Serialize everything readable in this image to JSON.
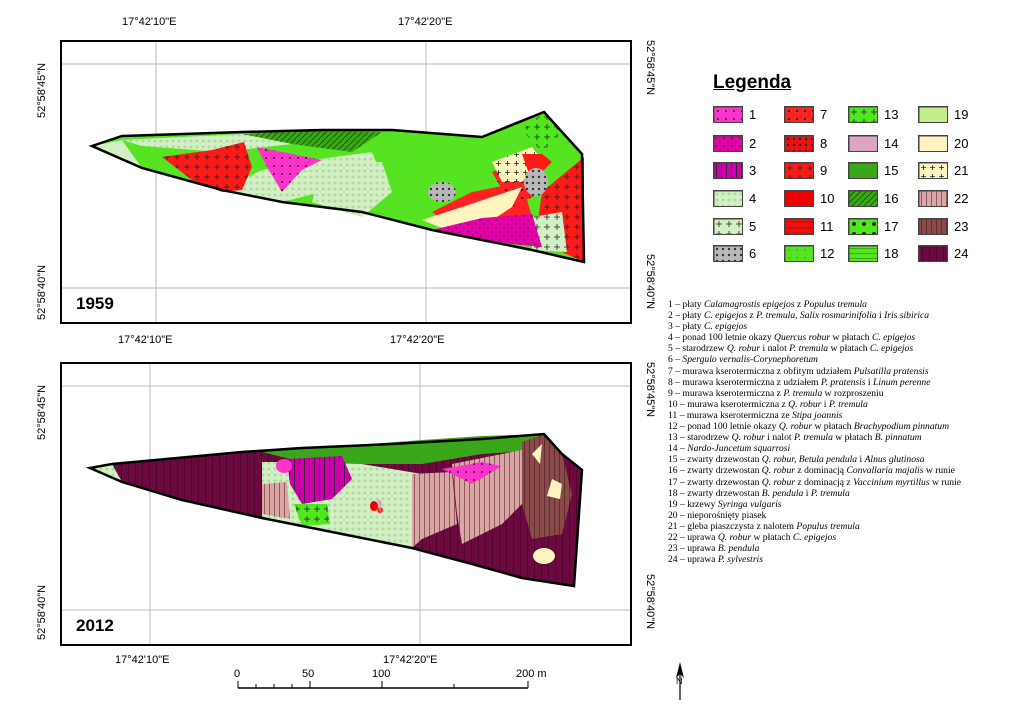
{
  "maps": [
    {
      "year": "1959"
    },
    {
      "year": "2012"
    }
  ],
  "coords": {
    "top_lon_1": "17°42'10\"E",
    "top_lon_2": "17°42'20\"E",
    "mid_lon_1": "17°42'10\"E",
    "mid_lon_2": "17°42'20\"E",
    "bot_lon_1": "17°42'10\"E",
    "bot_lon_2": "17°42'20\"E",
    "lat_45": "52°58'45\"N",
    "lat_40": "52°58'40\"N"
  },
  "legend": {
    "title": "Legenda",
    "items": [
      {
        "num": "1",
        "color": "#ff33cc"
      },
      {
        "num": "2",
        "color": "#e600a9"
      },
      {
        "num": "3",
        "color": "#cc00aa"
      },
      {
        "num": "4",
        "color": "#d3f0c4"
      },
      {
        "num": "5",
        "color": "#d3f0c4"
      },
      {
        "num": "6",
        "color": "#b8b8b8"
      },
      {
        "num": "7",
        "color": "#ff2222"
      },
      {
        "num": "8",
        "color": "#ee1111"
      },
      {
        "num": "9",
        "color": "#ff1a1a"
      },
      {
        "num": "10",
        "color": "#ee0000"
      },
      {
        "num": "11",
        "color": "#ee1111"
      },
      {
        "num": "12",
        "color": "#55e322"
      },
      {
        "num": "13",
        "color": "#4ee81e"
      },
      {
        "num": "14",
        "color": "#d9a6c6"
      },
      {
        "num": "15",
        "color": "#3aa61a"
      },
      {
        "num": "16",
        "color": "#3aa61a"
      },
      {
        "num": "17",
        "color": "#4ee81e"
      },
      {
        "num": "18",
        "color": "#55e322"
      },
      {
        "num": "19",
        "color": "#c4ec8c"
      },
      {
        "num": "20",
        "color": "#fff4c0"
      },
      {
        "num": "21",
        "color": "#fff4c0"
      },
      {
        "num": "22",
        "color": "#d9a6a6"
      },
      {
        "num": "23",
        "color": "#8a4a4a"
      },
      {
        "num": "24",
        "color": "#6b0a3e"
      }
    ]
  },
  "descriptions": [
    [
      "1 – płaty ",
      {
        "i": "Calamagrostis epigejos"
      },
      " z ",
      {
        "i": "Populus tremula"
      }
    ],
    [
      "2 – płaty ",
      {
        "i": "C. epigejos"
      },
      " z ",
      {
        "i": "P. tremula, Salix rosmarinifolia"
      },
      " i ",
      {
        "i": "Iris sibirica"
      }
    ],
    [
      "3 – płaty ",
      {
        "i": "C. epigejos"
      }
    ],
    [
      "4 – ponad 100 letnie okazy ",
      {
        "i": "Quercus robur"
      },
      " w płatach ",
      {
        "i": "C. epigejos"
      }
    ],
    [
      "5 – starodrzew ",
      {
        "i": "Q. robur"
      },
      " i nalot ",
      {
        "i": "P. tremula"
      },
      " w płatach ",
      {
        "i": "C. epigejos"
      }
    ],
    [
      "6 – ",
      {
        "i": "Spergulo vernalis-Corynephoretum"
      }
    ],
    [
      "7 – murawa kserotermiczna z obfitym udziałem ",
      {
        "i": "Pulsatilla pratensis"
      }
    ],
    [
      "8 – murawa kserotermiczna z udziałem ",
      {
        "i": "P. pratensis"
      },
      " i ",
      {
        "i": "Linum perenne"
      }
    ],
    [
      "9 – murawa kserotermiczna z ",
      {
        "i": "P. tremula"
      },
      " w rozproszeniu"
    ],
    [
      "10 – murawa kserotermiczna z ",
      {
        "i": "Q. robur"
      },
      " i ",
      {
        "i": "P. tremula"
      }
    ],
    [
      "11 – murawa kserotermiczna ze ",
      {
        "i": "Stipa joannis"
      }
    ],
    [
      "12 – ponad 100 letnie okazy ",
      {
        "i": "Q. robur"
      },
      " w płatach ",
      {
        "i": "Brachypodium pinnatum"
      }
    ],
    [
      "13 – starodrzew ",
      {
        "i": "Q. robur"
      },
      " i nalot ",
      {
        "i": "P. tremula"
      },
      " w płatach ",
      {
        "i": "B. pinnatum"
      }
    ],
    [
      "14 – ",
      {
        "i": "Nardo-Juncetum squarrosi"
      }
    ],
    [
      "15 – zwarty drzewostan ",
      {
        "i": "Q. robur, Betula pendula"
      },
      " i ",
      {
        "i": "Alnus glutinosa"
      }
    ],
    [
      "16 – zwarty drzewostan ",
      {
        "i": "Q. robur"
      },
      " z dominacją ",
      {
        "i": "Convallaria majalis"
      },
      " w runie"
    ],
    [
      "17 – zwarty drzewostan ",
      {
        "i": "Q. robur"
      },
      " z dominacją z ",
      {
        "i": "Vaccinium myrtillus"
      },
      " w runie"
    ],
    [
      "18 – zwarty drzewostan ",
      {
        "i": "B. pendula"
      },
      " i ",
      {
        "i": "P. tremula"
      }
    ],
    [
      "19 – krzewy ",
      {
        "i": "Syringa vulgaris"
      }
    ],
    [
      "20 – nieporośnięty piasek"
    ],
    [
      "21 – gleba piaszczysta z nalotem ",
      {
        "i": "Populus tremula"
      }
    ],
    [
      "22 – uprawa ",
      {
        "i": "Q. robur"
      },
      " w płatach ",
      {
        "i": "C. epigejos"
      }
    ],
    [
      "23 – uprawa ",
      {
        "i": "B. pendula"
      }
    ],
    [
      "24 – uprawa ",
      {
        "i": "P. sylvestris"
      }
    ]
  ],
  "scalebar": {
    "ticks": [
      "0",
      "50",
      "100",
      "200 m"
    ]
  },
  "north": {
    "symbol": "N"
  }
}
